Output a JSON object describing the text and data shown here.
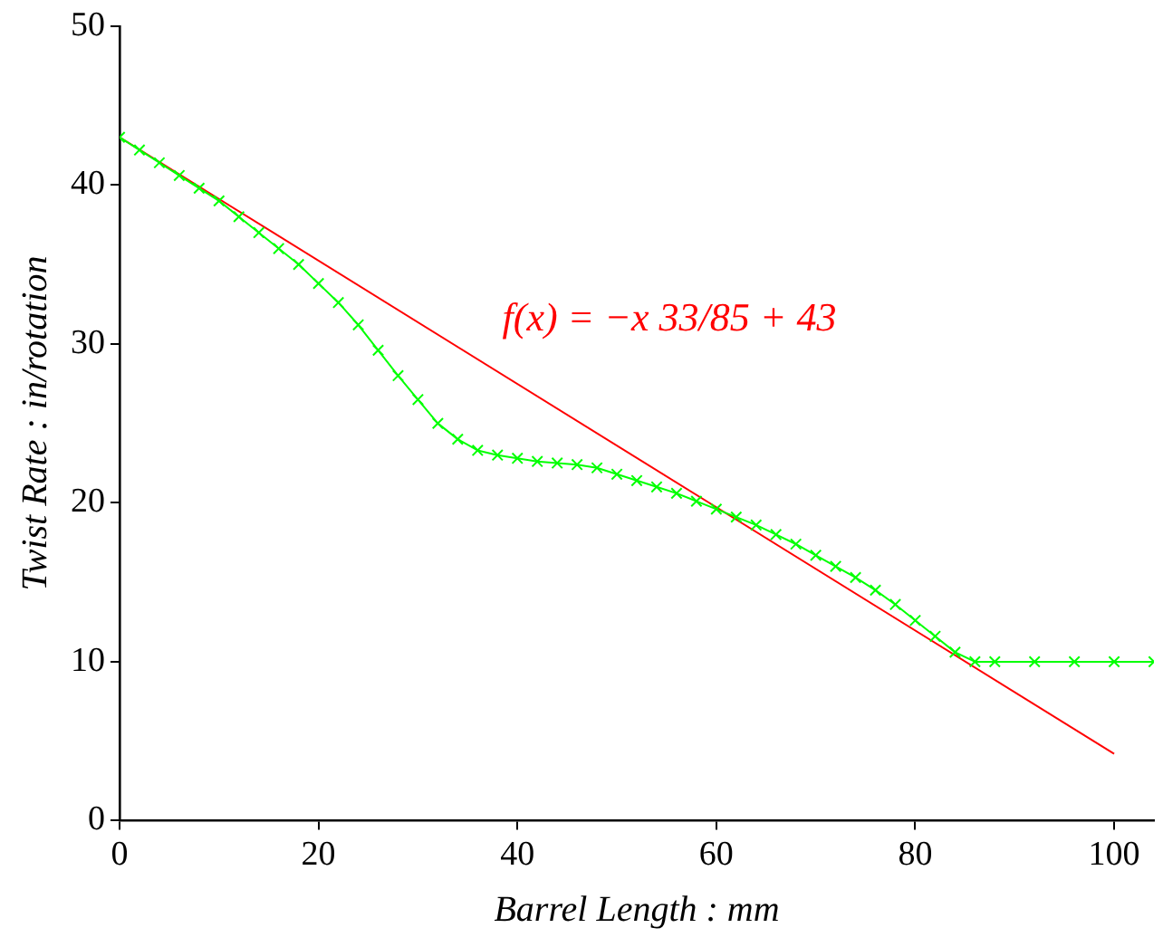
{
  "chart_data": {
    "type": "line",
    "xlabel": "Barrel Length : mm",
    "ylabel": "Twist Rate : in/rotation",
    "xlim": [
      0,
      104
    ],
    "xticks": [
      0,
      20,
      40,
      60,
      80,
      100
    ],
    "ylim": [
      0,
      50
    ],
    "yticks": [
      0,
      10,
      20,
      30,
      40,
      50
    ],
    "marker": "cross",
    "series": [
      {
        "color": "#00ff00",
        "x": [
          0,
          2,
          4,
          6,
          8,
          10,
          12,
          14,
          16,
          18,
          20,
          22,
          24,
          26,
          28,
          30,
          32,
          34,
          36,
          38,
          40,
          42,
          44,
          46,
          48,
          50,
          52,
          54,
          56,
          58,
          60,
          62,
          64,
          66,
          68,
          70,
          72,
          74,
          76,
          78,
          80,
          82,
          84,
          86,
          88,
          92,
          96,
          100,
          104
        ],
        "values": [
          43,
          42.2,
          41.4,
          40.6,
          39.8,
          39,
          38,
          37,
          36,
          35,
          33.8,
          32.6,
          31.2,
          29.6,
          28,
          26.5,
          25,
          24,
          23.3,
          23,
          22.8,
          22.6,
          22.5,
          22.4,
          22.2,
          21.8,
          21.4,
          21,
          20.6,
          20.1,
          19.6,
          19.1,
          18.6,
          18,
          17.4,
          16.7,
          16,
          15.3,
          14.5,
          13.6,
          12.6,
          11.6,
          10.6,
          10,
          10,
          10,
          10,
          10,
          10
        ]
      },
      {
        "type": "line",
        "color": "#ff0000",
        "marker": "none",
        "x": [
          0,
          100
        ],
        "values": [
          43,
          4.2
        ]
      }
    ],
    "annotations": [
      "f(x) = −x 33/85 + 43"
    ]
  }
}
